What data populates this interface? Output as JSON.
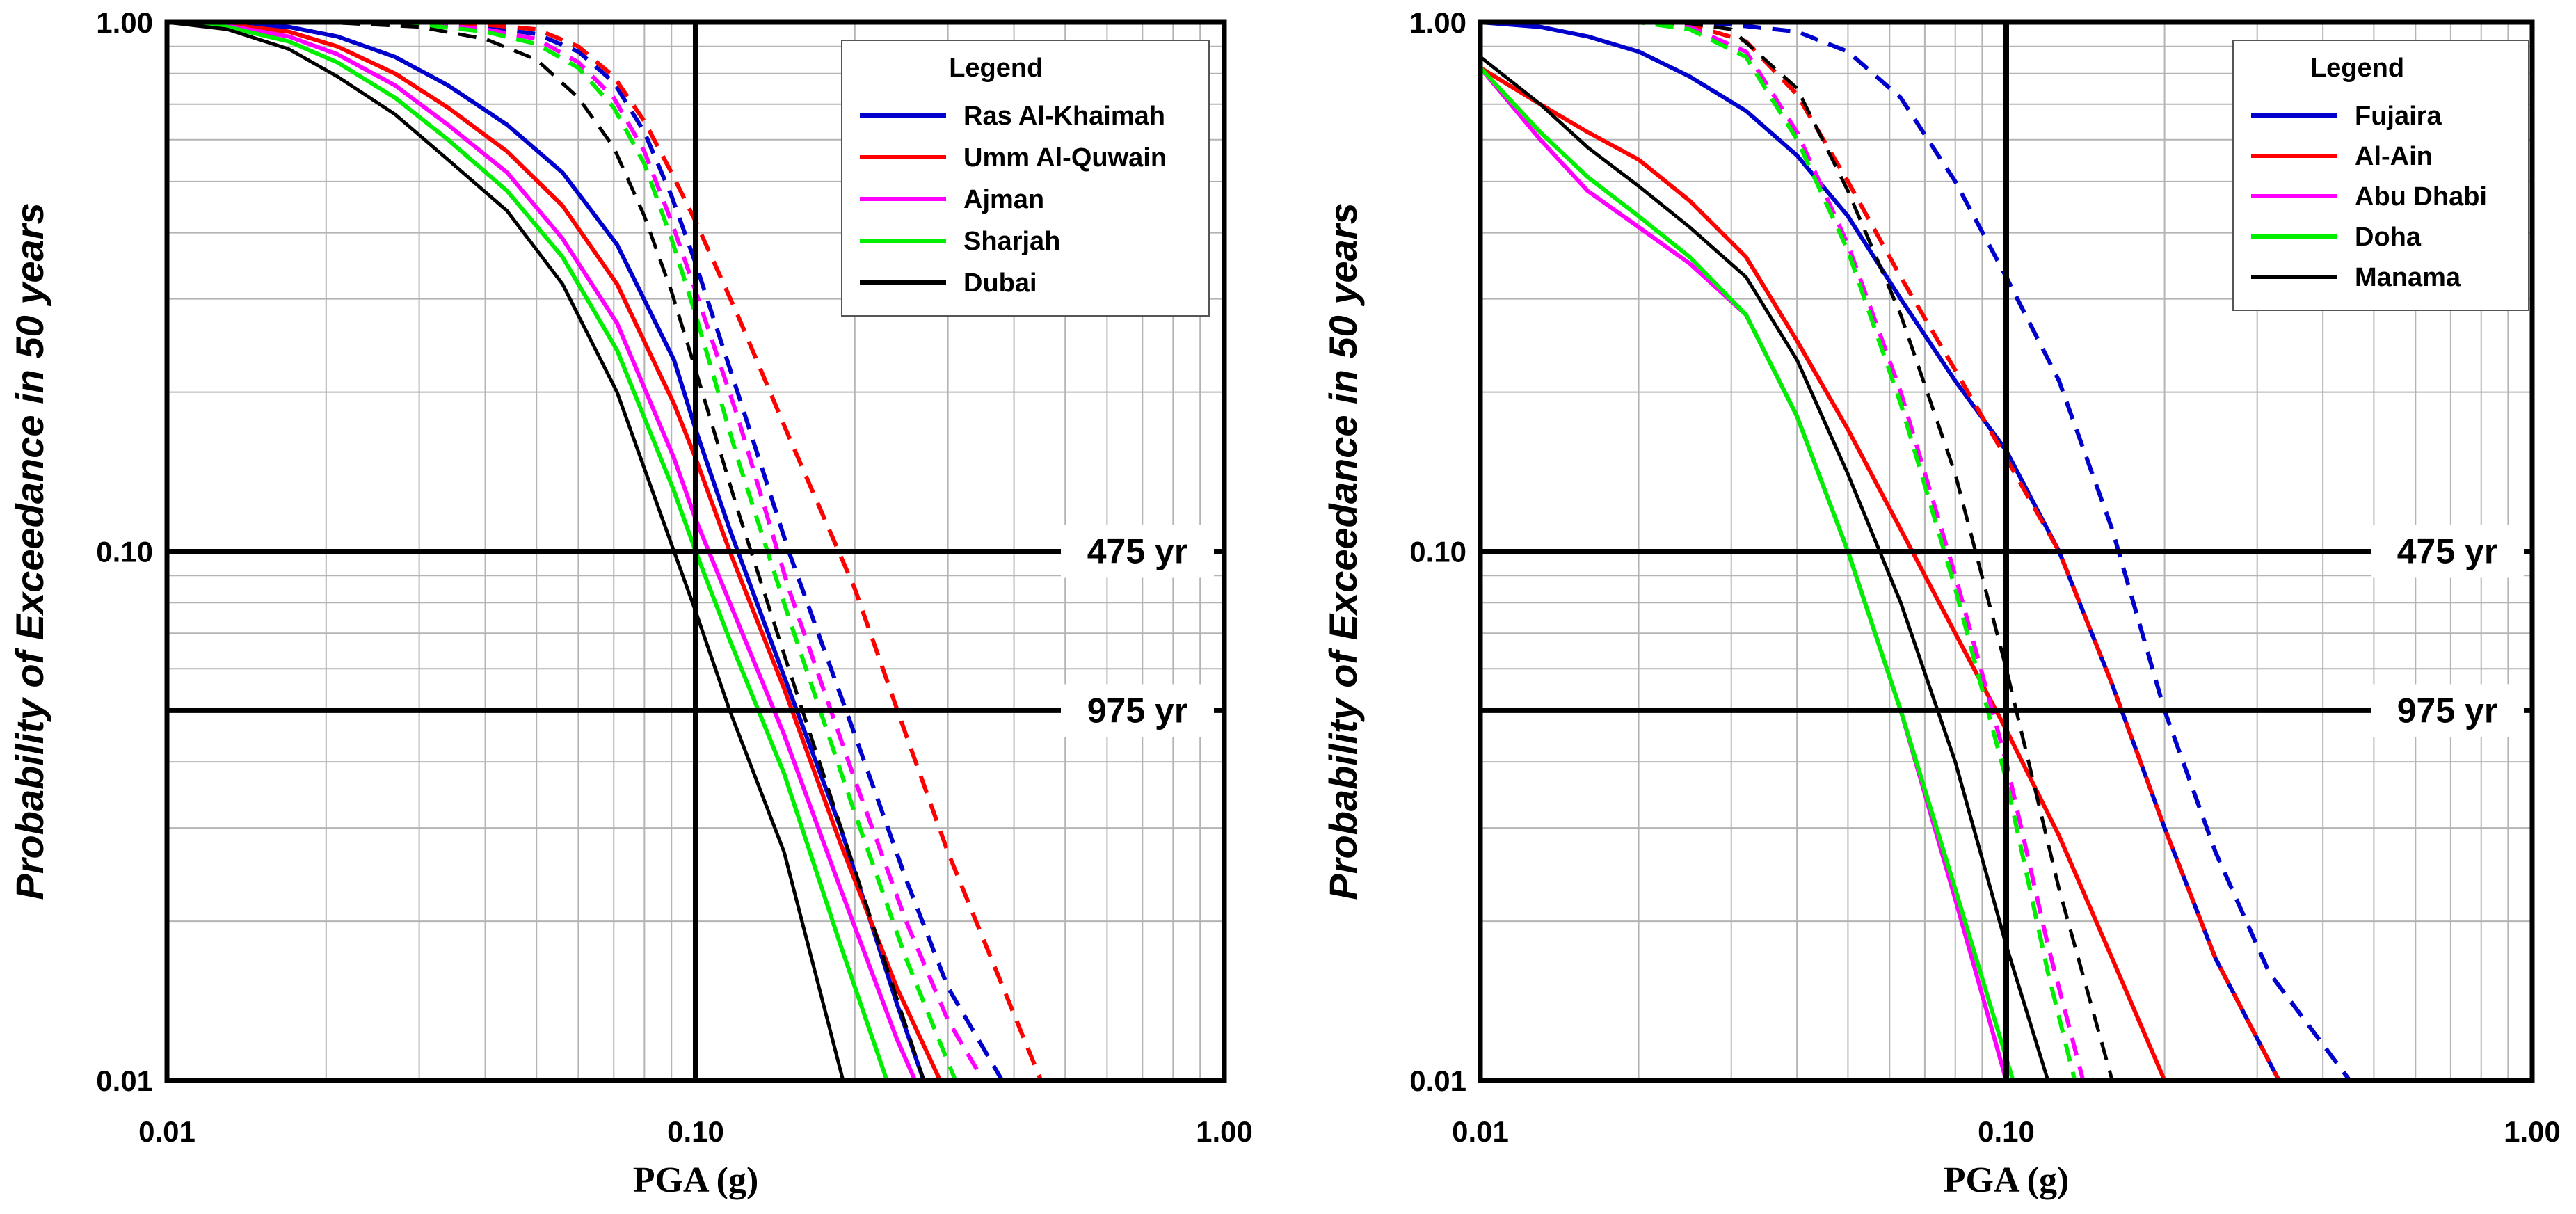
{
  "chart_data": [
    {
      "type": "line",
      "xlabel": "PGA (g)",
      "ylabel": "Probability of Exceedance in 50 years",
      "xscale": "log",
      "yscale": "log",
      "xlim": [
        0.01,
        1.0
      ],
      "ylim": [
        0.01,
        1.0
      ],
      "xticks": [
        "0.01",
        "0.10",
        "1.00"
      ],
      "yticks": [
        "0.01",
        "0.10",
        "1.00"
      ],
      "grid": true,
      "legend_title": "Legend",
      "legend_position": "top-right",
      "reference_lines": [
        {
          "label": "475 yr",
          "y": 0.1,
          "orientation": "horizontal"
        },
        {
          "label": "975 yr",
          "y": 0.05,
          "orientation": "horizontal"
        },
        {
          "x": 0.1,
          "orientation": "vertical"
        }
      ],
      "series": [
        {
          "name": "Ras Al-Khaimah",
          "color": "#0000cc",
          "style": "solid",
          "x": [
            0.01,
            0.013,
            0.017,
            0.021,
            0.027,
            0.034,
            0.044,
            0.056,
            0.071,
            0.091,
            0.1,
            0.116,
            0.147,
            0.188,
            0.24,
            0.27
          ],
          "y": [
            1.0,
            0.995,
            0.98,
            0.94,
            0.86,
            0.76,
            0.64,
            0.52,
            0.38,
            0.23,
            0.17,
            0.11,
            0.058,
            0.03,
            0.014,
            0.01
          ]
        },
        {
          "name": "Ras Al-Khaimah",
          "color": "#0000cc",
          "style": "dashed",
          "in_legend": false,
          "x": [
            0.01,
            0.02,
            0.03,
            0.04,
            0.05,
            0.06,
            0.07,
            0.08,
            0.09,
            0.1,
            0.12,
            0.15,
            0.2,
            0.25,
            0.3,
            0.38
          ],
          "y": [
            1.0,
            1.0,
            0.995,
            0.98,
            0.95,
            0.88,
            0.77,
            0.62,
            0.47,
            0.35,
            0.2,
            0.1,
            0.045,
            0.024,
            0.015,
            0.01
          ]
        },
        {
          "name": "Umm Al-Quwain",
          "color": "#ff0000",
          "style": "solid",
          "x": [
            0.01,
            0.013,
            0.017,
            0.021,
            0.027,
            0.034,
            0.044,
            0.056,
            0.071,
            0.091,
            0.1,
            0.116,
            0.147,
            0.188,
            0.24,
            0.29
          ],
          "y": [
            1.0,
            0.99,
            0.96,
            0.9,
            0.8,
            0.69,
            0.57,
            0.45,
            0.32,
            0.19,
            0.15,
            0.1,
            0.055,
            0.028,
            0.015,
            0.01
          ]
        },
        {
          "name": "Umm Al-Quwain",
          "color": "#ff0000",
          "style": "dashed",
          "in_legend": false,
          "x": [
            0.01,
            0.02,
            0.03,
            0.04,
            0.05,
            0.06,
            0.07,
            0.08,
            0.09,
            0.1,
            0.12,
            0.15,
            0.2,
            0.25,
            0.3,
            0.45
          ],
          "y": [
            1.0,
            1.0,
            1.0,
            0.99,
            0.97,
            0.9,
            0.79,
            0.65,
            0.52,
            0.42,
            0.28,
            0.165,
            0.085,
            0.045,
            0.027,
            0.01
          ]
        },
        {
          "name": "Ajman",
          "color": "#ff00ff",
          "style": "solid",
          "x": [
            0.01,
            0.013,
            0.017,
            0.021,
            0.027,
            0.034,
            0.044,
            0.056,
            0.071,
            0.091,
            0.1,
            0.116,
            0.147,
            0.188,
            0.24,
            0.26
          ],
          "y": [
            1.0,
            0.985,
            0.94,
            0.87,
            0.76,
            0.64,
            0.52,
            0.39,
            0.27,
            0.15,
            0.115,
            0.08,
            0.045,
            0.023,
            0.012,
            0.01
          ]
        },
        {
          "name": "Ajman",
          "color": "#ff00ff",
          "style": "dashed",
          "in_legend": false,
          "x": [
            0.01,
            0.02,
            0.03,
            0.04,
            0.05,
            0.06,
            0.07,
            0.08,
            0.09,
            0.1,
            0.12,
            0.15,
            0.2,
            0.25,
            0.3,
            0.35
          ],
          "y": [
            1.0,
            1.0,
            0.995,
            0.97,
            0.93,
            0.84,
            0.72,
            0.57,
            0.42,
            0.31,
            0.18,
            0.085,
            0.037,
            0.02,
            0.013,
            0.01
          ]
        },
        {
          "name": "Sharjah",
          "color": "#00ee00",
          "style": "solid",
          "x": [
            0.01,
            0.013,
            0.017,
            0.021,
            0.027,
            0.034,
            0.044,
            0.056,
            0.071,
            0.091,
            0.1,
            0.116,
            0.147,
            0.188,
            0.23
          ],
          "y": [
            1.0,
            0.98,
            0.92,
            0.84,
            0.72,
            0.6,
            0.48,
            0.36,
            0.24,
            0.13,
            0.1,
            0.068,
            0.038,
            0.018,
            0.01
          ]
        },
        {
          "name": "Sharjah",
          "color": "#00ee00",
          "style": "dashed",
          "in_legend": false,
          "x": [
            0.01,
            0.02,
            0.03,
            0.04,
            0.05,
            0.06,
            0.07,
            0.08,
            0.09,
            0.1,
            0.12,
            0.15,
            0.2,
            0.25,
            0.31
          ],
          "y": [
            1.0,
            1.0,
            0.99,
            0.96,
            0.91,
            0.82,
            0.69,
            0.54,
            0.39,
            0.28,
            0.15,
            0.075,
            0.032,
            0.017,
            0.01
          ]
        },
        {
          "name": "Dubai",
          "color": "#000000",
          "style": "solid",
          "x": [
            0.01,
            0.013,
            0.017,
            0.021,
            0.027,
            0.034,
            0.044,
            0.056,
            0.071,
            0.091,
            0.1,
            0.116,
            0.147,
            0.19
          ],
          "y": [
            1.0,
            0.97,
            0.89,
            0.79,
            0.67,
            0.55,
            0.44,
            0.32,
            0.2,
            0.1,
            0.077,
            0.05,
            0.027,
            0.01
          ]
        },
        {
          "name": "Dubai",
          "color": "#000000",
          "style": "dashed",
          "in_legend": false,
          "x": [
            0.01,
            0.02,
            0.03,
            0.04,
            0.05,
            0.06,
            0.07,
            0.08,
            0.09,
            0.1,
            0.12,
            0.15,
            0.2,
            0.27
          ],
          "y": [
            1.0,
            1.0,
            0.98,
            0.93,
            0.85,
            0.72,
            0.58,
            0.43,
            0.31,
            0.22,
            0.12,
            0.06,
            0.025,
            0.01
          ]
        }
      ]
    },
    {
      "type": "line",
      "xlabel": "PGA (g)",
      "ylabel": "Probability of Exceedance in 50 years",
      "xscale": "log",
      "yscale": "log",
      "xlim": [
        0.01,
        1.0
      ],
      "ylim": [
        0.01,
        1.0
      ],
      "xticks": [
        "0.01",
        "0.10",
        "1.00"
      ],
      "yticks": [
        "0.01",
        "0.10",
        "1.00"
      ],
      "grid": true,
      "legend_title": "Legend",
      "legend_position": "top-right",
      "reference_lines": [
        {
          "label": "475 yr",
          "y": 0.1,
          "orientation": "horizontal"
        },
        {
          "label": "975 yr",
          "y": 0.05,
          "orientation": "horizontal"
        },
        {
          "x": 0.1,
          "orientation": "vertical"
        }
      ],
      "series": [
        {
          "name": "Fujaira",
          "color": "#0000cc",
          "style": "solid",
          "x": [
            0.01,
            0.013,
            0.016,
            0.02,
            0.025,
            0.032,
            0.04,
            0.05,
            0.063,
            0.08,
            0.1,
            0.126,
            0.159,
            0.2,
            0.25,
            0.33
          ],
          "y": [
            1.0,
            0.98,
            0.94,
            0.88,
            0.79,
            0.68,
            0.56,
            0.43,
            0.3,
            0.21,
            0.155,
            0.1,
            0.056,
            0.03,
            0.017,
            0.01
          ]
        },
        {
          "name": "Fujaira",
          "color": "#0000cc",
          "style": "dashed",
          "in_legend": false,
          "x": [
            0.01,
            0.02,
            0.03,
            0.04,
            0.05,
            0.063,
            0.08,
            0.1,
            0.126,
            0.159,
            0.2,
            0.25,
            0.316,
            0.45
          ],
          "y": [
            1.0,
            1.0,
            0.99,
            0.96,
            0.88,
            0.72,
            0.5,
            0.33,
            0.21,
            0.11,
            0.05,
            0.027,
            0.016,
            0.01
          ]
        },
        {
          "name": "Al-Ain",
          "color": "#ff0000",
          "style": "solid",
          "x": [
            0.01,
            0.013,
            0.016,
            0.02,
            0.025,
            0.032,
            0.04,
            0.05,
            0.063,
            0.08,
            0.1,
            0.126,
            0.159,
            0.2
          ],
          "y": [
            0.82,
            0.7,
            0.62,
            0.55,
            0.46,
            0.36,
            0.25,
            0.17,
            0.11,
            0.07,
            0.046,
            0.029,
            0.017,
            0.01
          ]
        },
        {
          "name": "Al-Ain",
          "color": "#ff0000",
          "style": "dashed",
          "in_legend": false,
          "x": [
            0.01,
            0.02,
            0.025,
            0.032,
            0.04,
            0.05,
            0.063,
            0.08,
            0.1,
            0.126,
            0.159,
            0.2,
            0.25,
            0.33
          ],
          "y": [
            1.0,
            1.0,
            0.99,
            0.92,
            0.73,
            0.5,
            0.33,
            0.22,
            0.15,
            0.1,
            0.056,
            0.03,
            0.017,
            0.01
          ]
        },
        {
          "name": "Abu Dhabi",
          "color": "#ff00ff",
          "style": "solid",
          "x": [
            0.01,
            0.013,
            0.016,
            0.02,
            0.025,
            0.032,
            0.04,
            0.05,
            0.063,
            0.08,
            0.1
          ],
          "y": [
            0.82,
            0.6,
            0.48,
            0.41,
            0.35,
            0.28,
            0.18,
            0.1,
            0.05,
            0.022,
            0.01
          ]
        },
        {
          "name": "Abu Dhabi",
          "color": "#ff00ff",
          "style": "dashed",
          "in_legend": false,
          "x": [
            0.01,
            0.02,
            0.025,
            0.032,
            0.04,
            0.05,
            0.063,
            0.08,
            0.1,
            0.12,
            0.14
          ],
          "y": [
            1.0,
            1.0,
            0.98,
            0.88,
            0.62,
            0.38,
            0.2,
            0.09,
            0.04,
            0.018,
            0.01
          ]
        },
        {
          "name": "Doha",
          "color": "#00ee00",
          "style": "solid",
          "x": [
            0.01,
            0.013,
            0.016,
            0.02,
            0.025,
            0.032,
            0.04,
            0.05,
            0.063,
            0.08,
            0.103
          ],
          "y": [
            0.82,
            0.62,
            0.51,
            0.43,
            0.36,
            0.28,
            0.18,
            0.1,
            0.05,
            0.023,
            0.01
          ]
        },
        {
          "name": "Doha",
          "color": "#00ee00",
          "style": "dashed",
          "in_legend": false,
          "x": [
            0.01,
            0.02,
            0.025,
            0.032,
            0.04,
            0.05,
            0.063,
            0.08,
            0.1,
            0.12,
            0.135
          ],
          "y": [
            1.0,
            1.0,
            0.97,
            0.86,
            0.6,
            0.37,
            0.19,
            0.085,
            0.037,
            0.016,
            0.01
          ]
        },
        {
          "name": "Manama",
          "color": "#000000",
          "style": "solid",
          "x": [
            0.01,
            0.013,
            0.016,
            0.02,
            0.025,
            0.032,
            0.04,
            0.05,
            0.063,
            0.08,
            0.1,
            0.12
          ],
          "y": [
            0.86,
            0.7,
            0.58,
            0.49,
            0.41,
            0.33,
            0.23,
            0.14,
            0.08,
            0.04,
            0.018,
            0.01
          ]
        },
        {
          "name": "Manama",
          "color": "#000000",
          "style": "dashed",
          "in_legend": false,
          "x": [
            0.01,
            0.02,
            0.025,
            0.03,
            0.04,
            0.05,
            0.063,
            0.08,
            0.1,
            0.126,
            0.159
          ],
          "y": [
            1.0,
            1.0,
            0.995,
            0.97,
            0.75,
            0.48,
            0.28,
            0.14,
            0.06,
            0.023,
            0.01
          ]
        }
      ]
    }
  ]
}
